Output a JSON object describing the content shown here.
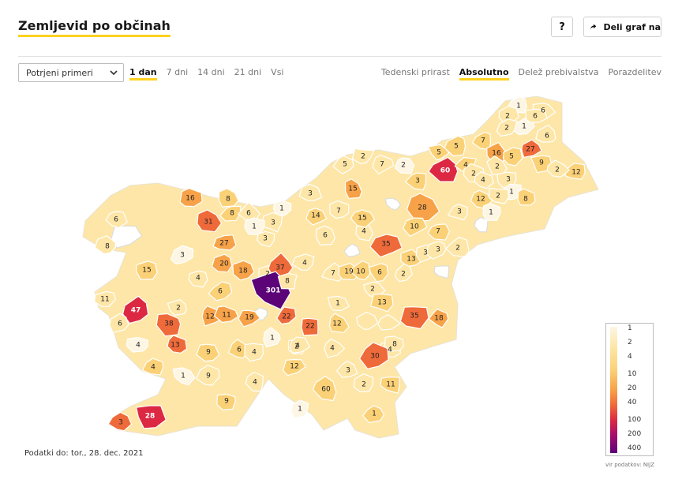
{
  "header": {
    "title": "Zemljevid po občinah",
    "help_label": "?",
    "share_label": "Deli graf na"
  },
  "controls": {
    "metric_select": "Potrjeni primeri",
    "ranges": [
      "1 dan",
      "7 dni",
      "14 dni",
      "21 dni",
      "Vsi"
    ],
    "active_range": "1 dan",
    "modes": [
      "Tedenski prirast",
      "Absolutno",
      "Delež prebivalstva",
      "Porazdelitev"
    ],
    "active_mode": "Absolutno"
  },
  "map": {
    "colors": {
      "c1": "#fdf6e4",
      "c2": "#fde6a7",
      "c3": "#fbd177",
      "c4": "#f7a248",
      "c5": "#ef6a3a",
      "c6": "#dc2842",
      "c7": "#5c0378",
      "white": "#ffffff"
    },
    "labels": [
      "1",
      "6",
      "2",
      "1",
      "6",
      "2",
      "6",
      "27",
      "5",
      "5",
      "7",
      "16",
      "5",
      "9",
      "60",
      "4",
      "2",
      "4",
      "2",
      "12",
      "3",
      "2",
      "1",
      "8",
      "5",
      "2",
      "7",
      "2",
      "15",
      "3",
      "28",
      "12",
      "2",
      "1",
      "3",
      "16",
      "6",
      "8",
      "31",
      "8",
      "3",
      "14",
      "7",
      "1",
      "8",
      "10",
      "7",
      "6",
      "4",
      "3",
      "15",
      "6",
      "1",
      "3",
      "20",
      "27",
      "18",
      "2",
      "37",
      "4",
      "35",
      "13",
      "3",
      "2",
      "3",
      "2",
      "15",
      "4",
      "301",
      "8",
      "7",
      "19",
      "10",
      "6",
      "2",
      "6",
      "11",
      "47",
      "2",
      "12",
      "11",
      "19",
      "22",
      "22",
      "12",
      "13",
      "35",
      "18",
      "38",
      "13",
      "9",
      "6",
      "4",
      "2",
      "4",
      "4",
      "30",
      "8",
      "1",
      "4",
      "12",
      "3",
      "11",
      "4",
      "1",
      "9",
      "4",
      "9",
      "60",
      "28",
      "3",
      "1",
      "2",
      "1",
      "1",
      "3",
      "4",
      "6"
    ],
    "footnote": "Podatki do: tor., 28. dec. 2021"
  },
  "legend": {
    "ticks": [
      "1",
      "2",
      "4",
      "10",
      "20",
      "40",
      "100",
      "200",
      "400"
    ],
    "source": "vir podatkov: NIJZ"
  }
}
